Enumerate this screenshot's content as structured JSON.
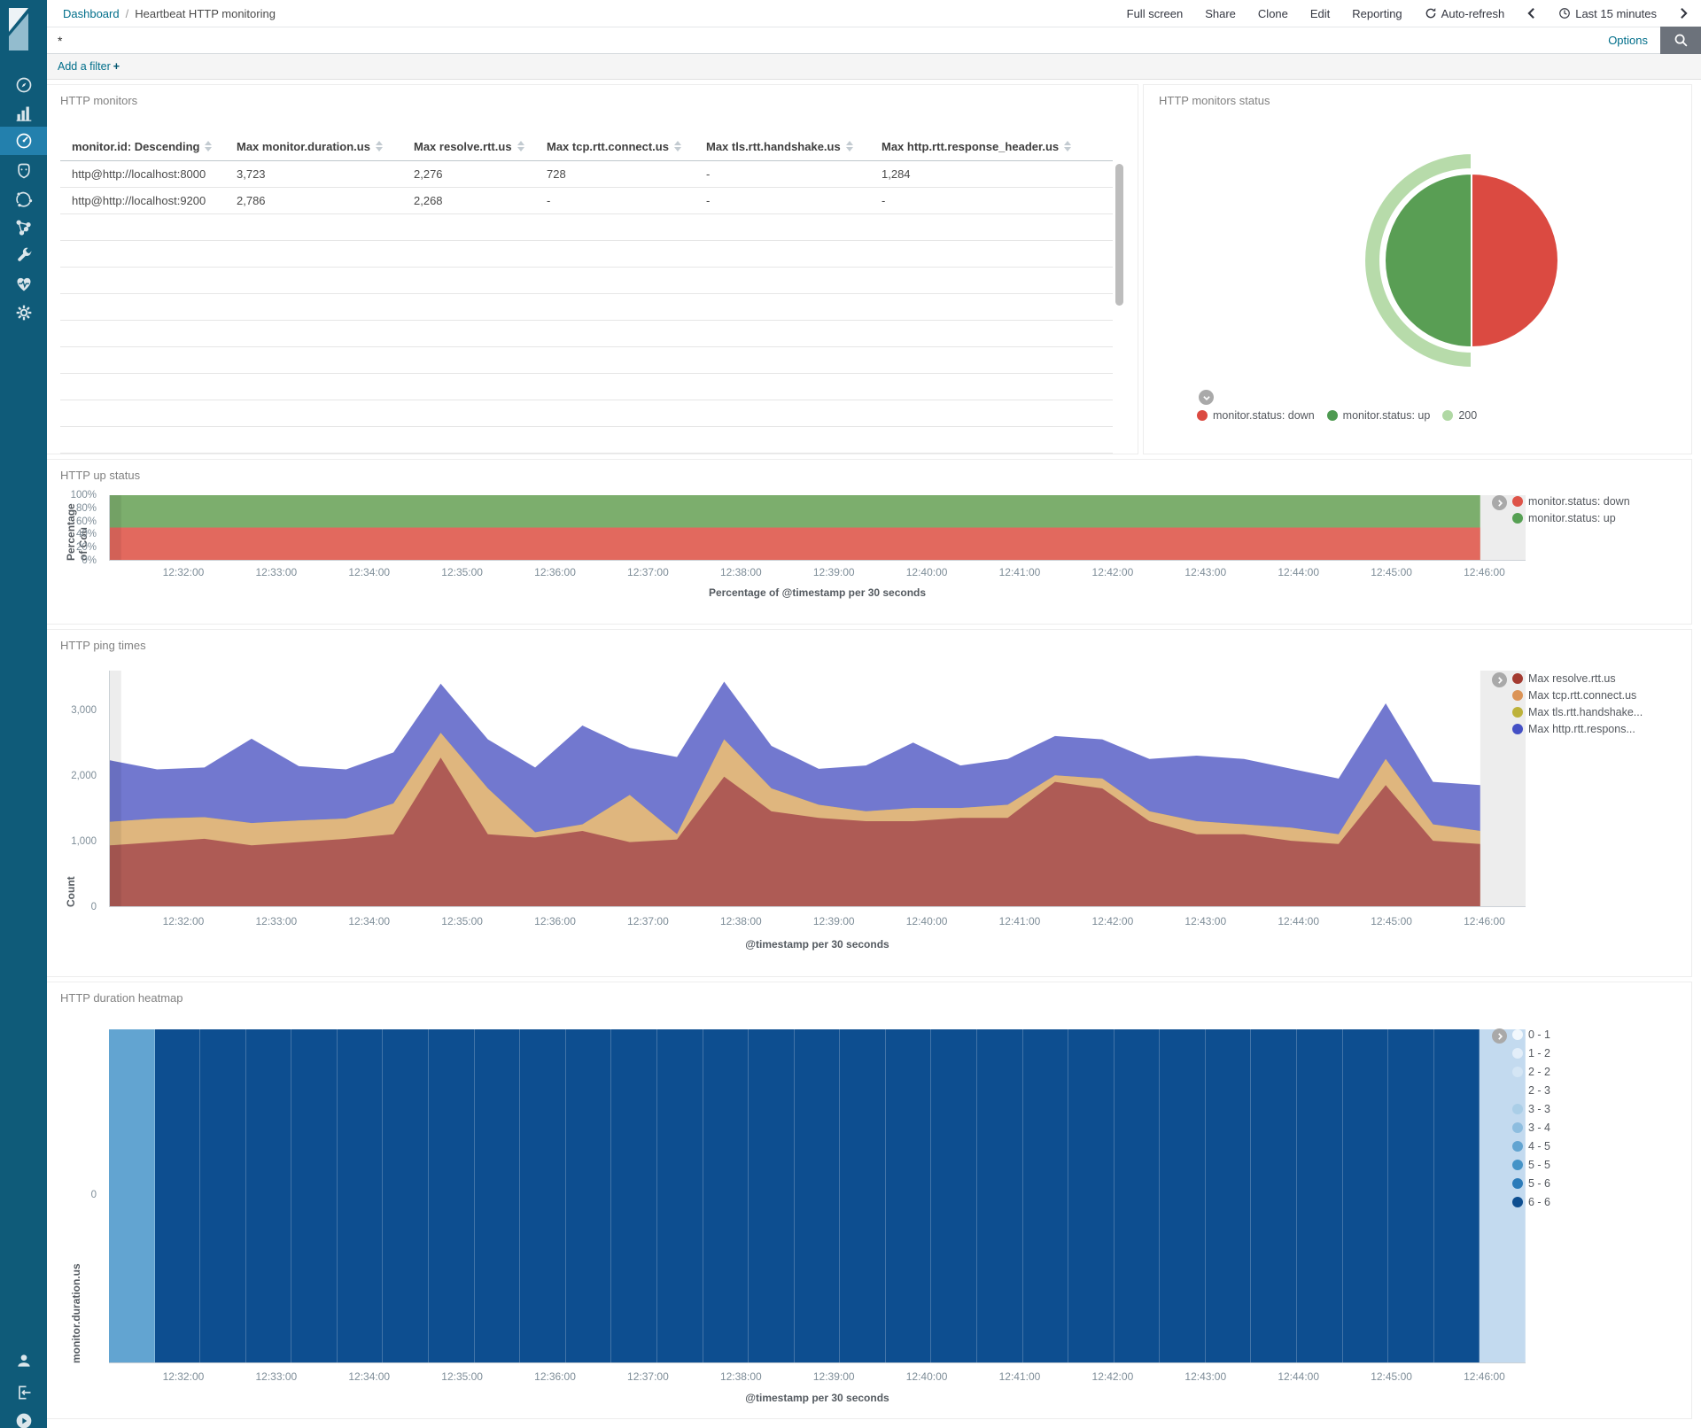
{
  "topbar": {
    "breadcrumb": {
      "root": "Dashboard",
      "separator": "/",
      "current": "Heartbeat HTTP monitoring"
    },
    "menu": {
      "full_screen": "Full screen",
      "share": "Share",
      "clone": "Clone",
      "edit": "Edit",
      "reporting": "Reporting",
      "auto_refresh": "Auto-refresh",
      "time_range": "Last 15 minutes"
    }
  },
  "querybar": {
    "value": "*",
    "options_label": "Options"
  },
  "filterbar": {
    "label": "Add a filter",
    "plus": "+"
  },
  "sidebar": {
    "selected": "dashboard",
    "items": [
      "discover",
      "visualize",
      "dashboard",
      "apm",
      "machine-learning",
      "graph",
      "dev-tools",
      "monitoring",
      "management"
    ],
    "bottom_items": [
      "account",
      "logout",
      "collapse"
    ]
  },
  "time_axis": {
    "ticks": [
      {
        "label": "12:32:00",
        "pos": 5.25
      },
      {
        "label": "12:33:00",
        "pos": 11.81
      },
      {
        "label": "12:34:00",
        "pos": 18.37
      },
      {
        "label": "12:35:00",
        "pos": 24.93
      },
      {
        "label": "12:36:00",
        "pos": 31.49
      },
      {
        "label": "12:37:00",
        "pos": 38.05
      },
      {
        "label": "12:38:00",
        "pos": 44.61
      },
      {
        "label": "12:39:00",
        "pos": 51.17
      },
      {
        "label": "12:40:00",
        "pos": 57.73
      },
      {
        "label": "12:41:00",
        "pos": 64.29
      },
      {
        "label": "12:42:00",
        "pos": 70.85
      },
      {
        "label": "12:43:00",
        "pos": 77.41
      },
      {
        "label": "12:44:00",
        "pos": 83.97
      },
      {
        "label": "12:45:00",
        "pos": 90.53
      },
      {
        "label": "12:46:00",
        "pos": 97.09
      }
    ]
  },
  "panels": {
    "monitors": {
      "title": "HTTP monitors",
      "table": {
        "columns": [
          "monitor.id: Descending",
          "Max monitor.duration.us",
          "Max resolve.rtt.us",
          "Max tcp.rtt.connect.us",
          "Max tls.rtt.handshake.us",
          "Max http.rtt.response_header.us"
        ],
        "rows": [
          {
            "cells": [
              "http@http://localhost:8000",
              "3,723",
              "2,276",
              "728",
              "-",
              "1,284"
            ]
          },
          {
            "cells": [
              "http@http://localhost:9200",
              "2,786",
              "2,268",
              "-",
              "-",
              "-"
            ]
          }
        ],
        "empty_rows": 9
      }
    },
    "status_pie": {
      "title": "HTTP monitors status",
      "colors": {
        "down": "#DB4A41",
        "up": "#599E54",
        "ok200": "#B7DBAA"
      },
      "legend": [
        {
          "label": "monitor.status: down",
          "color": "#DB4A41"
        },
        {
          "label": "monitor.status: up",
          "color": "#4E9A51"
        },
        {
          "label": "200",
          "color": "#B0D8A4"
        }
      ],
      "chart_data": {
        "type": "pie",
        "inner_slices": [
          {
            "label": "monitor.status: down",
            "percent": 50
          },
          {
            "label": "monitor.status: up",
            "percent": 50
          }
        ],
        "outer_ring": [
          {
            "label": "200",
            "percent": 50,
            "position": "left-half"
          }
        ]
      }
    },
    "up_status": {
      "title": "HTTP up status",
      "y_label": "Percentage of Cou",
      "x_label": "Percentage of @timestamp per 30 seconds",
      "y_ticks": [
        {
          "label": "100%",
          "pos": 0
        },
        {
          "label": "80%",
          "pos": 20
        },
        {
          "label": "60%",
          "pos": 40
        },
        {
          "label": "40%",
          "pos": 60
        },
        {
          "label": "20%",
          "pos": 80
        },
        {
          "label": "0%",
          "pos": 100
        }
      ],
      "legend": [
        {
          "label": "monitor.status: down",
          "color": "#DE5348"
        },
        {
          "label": "monitor.status: up",
          "color": "#56A053"
        }
      ],
      "chart_data": {
        "type": "area",
        "stacked": true,
        "percentage": true,
        "ymax": 100,
        "x_start": "12:31:30",
        "x_step_seconds": 30,
        "series": [
          {
            "name": "monitor.status: down",
            "color": "#E2695E",
            "values": [
              50,
              50,
              50,
              50,
              50,
              50,
              50,
              50,
              50,
              50,
              50,
              50,
              50,
              50,
              50,
              50,
              50,
              50,
              50,
              50,
              50,
              50,
              50,
              50,
              50,
              50,
              50,
              50,
              50,
              50
            ]
          },
          {
            "name": "monitor.status: up",
            "color": "#7CAE6D",
            "values": [
              50,
              50,
              50,
              50,
              50,
              50,
              50,
              50,
              50,
              50,
              50,
              50,
              50,
              50,
              50,
              50,
              50,
              50,
              50,
              50,
              50,
              50,
              50,
              50,
              50,
              50,
              50,
              50,
              50,
              50
            ]
          }
        ]
      }
    },
    "ping_times": {
      "title": "HTTP ping times",
      "y_label": "Count",
      "x_label": "@timestamp per 30 seconds",
      "y_ticks": [
        {
          "label": "3,000",
          "pos": 16.7
        },
        {
          "label": "2,000",
          "pos": 44.4
        },
        {
          "label": "1,000",
          "pos": 72.2
        },
        {
          "label": "0",
          "pos": 100
        }
      ],
      "legend": [
        {
          "label": "Max resolve.rtt.us",
          "color": "#A33A30"
        },
        {
          "label": "Max tcp.rtt.connect.us",
          "color": "#DB9356"
        },
        {
          "label": "Max tls.rtt.handshake...",
          "color": "#BDB23A"
        },
        {
          "label": "Max http.rtt.respons...",
          "color": "#4450C5"
        }
      ],
      "chart_data": {
        "type": "area",
        "stacked": true,
        "ymax": 3600,
        "x_start": "12:31:30",
        "x_step_seconds": 30,
        "series": [
          {
            "name": "Max resolve.rtt.us",
            "color": "#AE5B55",
            "values": [
              930,
              980,
              1030,
              930,
              980,
              1030,
              1100,
              2270,
              1100,
              1050,
              1150,
              980,
              1020,
              1980,
              1450,
              1350,
              1300,
              1300,
              1350,
              1350,
              1900,
              1800,
              1300,
              1100,
              1100,
              1000,
              950,
              1850,
              1000,
              950
            ]
          },
          {
            "name": "Max tcp.rtt.connect.us",
            "color": "#DFB67E",
            "values": [
              360,
              360,
              330,
              340,
              330,
              310,
              470,
              380,
              700,
              80,
              100,
              720,
              80,
              570,
              350,
              200,
              150,
              200,
              150,
              200,
              100,
              150,
              150,
              200,
              150,
              200,
              150,
              400,
              250,
              200
            ]
          },
          {
            "name": "Max tls.rtt.handshake.us",
            "color": "#BDB23A",
            "values": [
              0,
              0,
              0,
              0,
              0,
              0,
              0,
              0,
              0,
              0,
              0,
              0,
              0,
              0,
              0,
              0,
              0,
              0,
              0,
              0,
              0,
              0,
              0,
              0,
              0,
              0,
              0,
              0,
              0,
              0
            ]
          },
          {
            "name": "Max http.rtt.response_header.us",
            "color": "#7278CF",
            "values": [
              940,
              750,
              760,
              1290,
              830,
              750,
              780,
              750,
              750,
              990,
              1510,
              720,
              1180,
              880,
              650,
              550,
              700,
              1000,
              650,
              700,
              600,
              600,
              800,
              1000,
              1000,
              900,
              850,
              850,
              650,
              700
            ]
          }
        ]
      }
    },
    "heatmap": {
      "title": "HTTP duration heatmap",
      "y_label": "monitor.duration.us",
      "x_label": "@timestamp per 30 seconds",
      "y_ticks": [
        {
          "label": "0",
          "pos": 49.6
        }
      ],
      "legend": [
        {
          "label": "0 - 1",
          "color": "#F2F8FD"
        },
        {
          "label": "1 - 2",
          "color": "#E3EEF9"
        },
        {
          "label": "2 - 2",
          "color": "#D4E5F4"
        },
        {
          "label": "2 - 3",
          "color": "#C3DAEF"
        },
        {
          "label": "3 - 3",
          "color": "#AACEE7"
        },
        {
          "label": "3 - 4",
          "color": "#8DBDDF"
        },
        {
          "label": "4 - 5",
          "color": "#62A4D1"
        },
        {
          "label": "5 - 5",
          "color": "#4493C7"
        },
        {
          "label": "5 - 6",
          "color": "#2B7BB9"
        },
        {
          "label": "6 - 6",
          "color": "#0D4E90"
        }
      ],
      "chart_data": {
        "type": "heatmap",
        "x_step_seconds": 30,
        "row_label": "monitor.duration.us: 0",
        "columns": [
          "4 - 5",
          "6 - 6",
          "6 - 6",
          "6 - 6",
          "6 - 6",
          "6 - 6",
          "6 - 6",
          "6 - 6",
          "6 - 6",
          "6 - 6",
          "6 - 6",
          "6 - 6",
          "6 - 6",
          "6 - 6",
          "6 - 6",
          "6 - 6",
          "6 - 6",
          "6 - 6",
          "6 - 6",
          "6 - 6",
          "6 - 6",
          "6 - 6",
          "6 - 6",
          "6 - 6",
          "6 - 6",
          "6 - 6",
          "6 - 6",
          "6 - 6",
          "6 - 6",
          "6 - 6",
          "2 - 3"
        ]
      }
    }
  }
}
